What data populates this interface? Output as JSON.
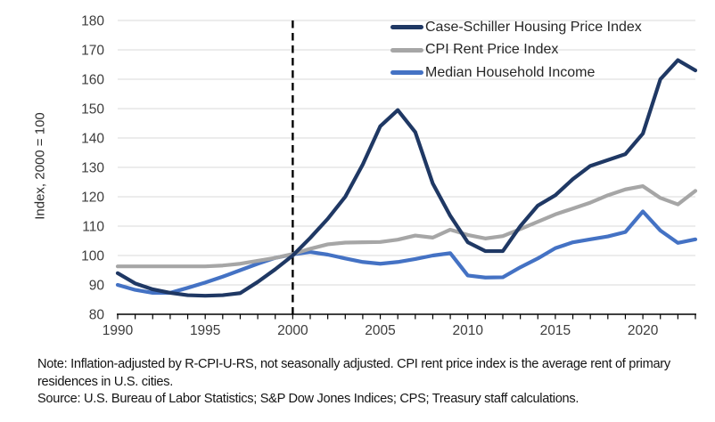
{
  "chart_data": {
    "type": "line",
    "title": "",
    "ylabel": "Index, 2000 = 100",
    "xlabel": "",
    "ylim": [
      80,
      180
    ],
    "xlim": [
      1990,
      2023
    ],
    "yticks": [
      80,
      90,
      100,
      110,
      120,
      130,
      140,
      150,
      160,
      170,
      180
    ],
    "xticks": [
      1990,
      1995,
      2000,
      2005,
      2010,
      2015,
      2020
    ],
    "minor_xticks": "every year 1990-2023",
    "grid": "horizontal",
    "legend_position": "top-right-inside",
    "reference_line_x": 2000,
    "reference_line_style": "black dashed vertical",
    "x": [
      1990,
      1991,
      1992,
      1993,
      1994,
      1995,
      1996,
      1997,
      1998,
      1999,
      2000,
      2001,
      2002,
      2003,
      2004,
      2005,
      2006,
      2007,
      2008,
      2009,
      2010,
      2011,
      2012,
      2013,
      2014,
      2015,
      2016,
      2017,
      2018,
      2019,
      2020,
      2021,
      2022,
      2023
    ],
    "series": [
      {
        "name": "Case-Schiller Housing Price Index",
        "color": "#1F3864",
        "values": [
          94,
          90.5,
          88.5,
          87.3,
          86.5,
          86.3,
          86.5,
          87.2,
          91,
          95.3,
          100,
          106,
          112.5,
          120,
          131,
          144,
          149.5,
          142,
          124.5,
          113.5,
          104.5,
          101.5,
          101.5,
          110,
          117,
          120.5,
          126,
          130.5,
          132.5,
          134.5,
          141.5,
          160,
          166.5,
          163
        ]
      },
      {
        "name": "CPI Rent Price Index",
        "color": "#A6A6A6",
        "values": [
          96.3,
          96.3,
          96.3,
          96.3,
          96.3,
          96.3,
          96.6,
          97.2,
          98.2,
          99.2,
          100.5,
          102.3,
          103.8,
          104.4,
          104.5,
          104.6,
          105.4,
          106.8,
          106.1,
          108.8,
          107,
          105.8,
          106.6,
          109,
          111.5,
          114,
          116,
          118,
          120.5,
          122.5,
          123.6,
          119.6,
          117.4,
          122
        ]
      },
      {
        "name": "Median Household Income",
        "color": "#4472C4",
        "values": [
          90,
          88.3,
          87.3,
          87.3,
          89,
          90.8,
          92.8,
          95,
          97.2,
          99.2,
          100.4,
          101.2,
          100.3,
          99,
          97.8,
          97.2,
          97.8,
          98.8,
          100,
          100.8,
          93.2,
          92.5,
          92.6,
          96,
          99,
          102.5,
          104.5,
          105.5,
          106.5,
          108,
          115,
          108.5,
          104.3,
          105.5
        ]
      }
    ]
  },
  "axes": {
    "y_title": "Index, 2000 = 100"
  },
  "notes": {
    "note": "Note: Inflation-adjusted by R-CPI-U-RS, not seasonally adjusted. CPI rent price index is the average rent of primary residences in U.S. cities.",
    "source": "Source: U.S. Bureau of Labor Statistics; S&P Dow Jones Indices; CPS; Treasury staff calculations."
  },
  "palette": {
    "gridline": "#D9D9D9",
    "axis": "#000000",
    "tick_text": "#3d3d3d"
  }
}
